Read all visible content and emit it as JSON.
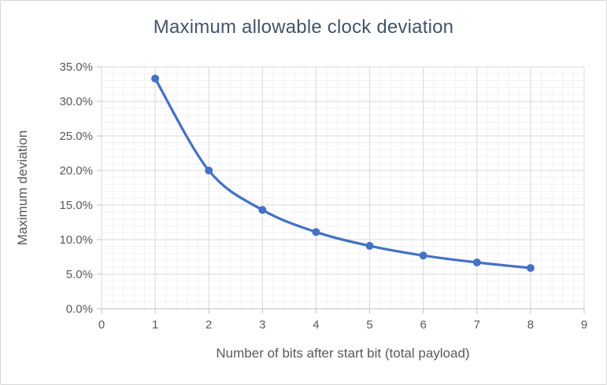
{
  "window": {
    "background": "#FFFFFF",
    "border_color": "#D7D7D7"
  },
  "chart_data": {
    "type": "line",
    "title": "Maximum allowable clock deviation",
    "xlabel": "Number of bits after start bit (total payload)",
    "ylabel": "Maximum deviation",
    "x": [
      1,
      2,
      3,
      4,
      5,
      6,
      7,
      8
    ],
    "series": [
      {
        "name": "Maximum deviation",
        "values_pct": [
          33.3,
          20.0,
          14.3,
          11.1,
          9.1,
          7.7,
          6.7,
          5.9
        ]
      }
    ],
    "xlim": [
      0,
      9
    ],
    "ylim_pct": [
      0,
      35
    ],
    "x_tick_labels": [
      "0",
      "1",
      "2",
      "3",
      "4",
      "5",
      "6",
      "7",
      "8",
      "9"
    ],
    "y_tick_labels": [
      "0.0%",
      "5.0%",
      "10.0%",
      "15.0%",
      "20.0%",
      "25.0%",
      "30.0%",
      "35.0%"
    ],
    "x_major_step": 1,
    "x_minor_step": 0.2,
    "y_major_step_pct": 5,
    "y_minor_step_pct": 1,
    "grid": "major+minor",
    "legend": "none",
    "smooth_line": true,
    "marker": "circle",
    "colors": {
      "series": "#4472C4",
      "major_grid": "#D9D9D9",
      "minor_grid": "#F2F2F2",
      "axis_line": "#BFBFBF",
      "tick_label": "#595959",
      "axis_title": "#595959",
      "chart_title": "#44546A"
    }
  }
}
